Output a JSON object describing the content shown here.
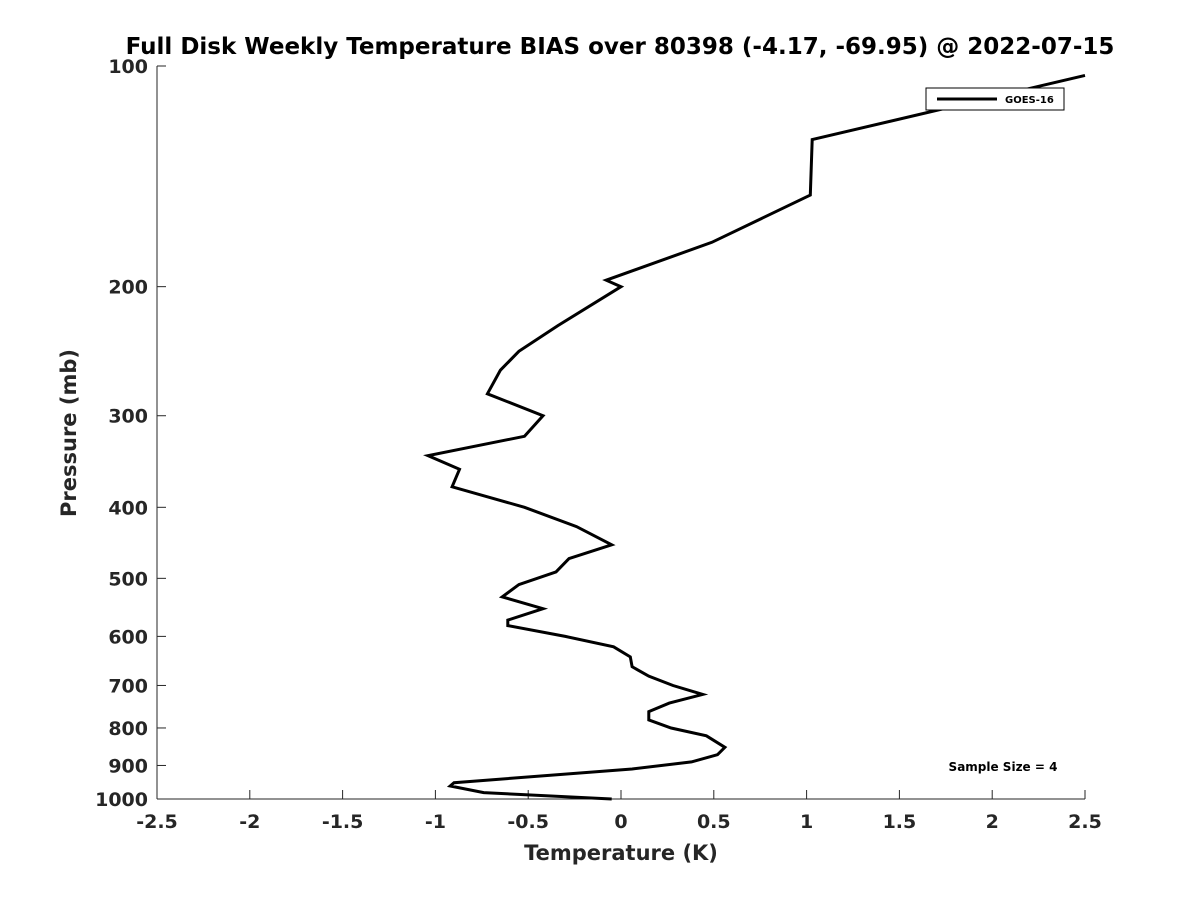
{
  "chart_data": {
    "type": "line",
    "title": "Full Disk Weekly Temperature BIAS over 80398 (-4.17, -69.95) @ 2022-07-15",
    "xlabel": "Temperature (K)",
    "ylabel": "Pressure (mb)",
    "xlim": [
      -2.5,
      2.5
    ],
    "ylim": [
      1000,
      100
    ],
    "y_scale": "log",
    "y_reversed": true,
    "grid": false,
    "legend_position": "top-right",
    "x_ticks": [
      -2.5,
      -2,
      -1.5,
      -1,
      -0.5,
      0,
      0.5,
      1,
      1.5,
      2,
      2.5
    ],
    "x_tick_labels": [
      "-2.5",
      "-2",
      "-1.5",
      "-1",
      "-0.5",
      "0",
      "0.5",
      "1",
      "1.5",
      "2",
      "2.5"
    ],
    "y_ticks": [
      100,
      200,
      300,
      400,
      500,
      600,
      700,
      800,
      900,
      1000
    ],
    "y_tick_labels": [
      "100",
      "200",
      "300",
      "400",
      "500",
      "600",
      "700",
      "800",
      "900",
      "1000"
    ],
    "series": [
      {
        "name": "GOES-16",
        "color": "#000000",
        "points": [
          {
            "x": 2.5,
            "y": 103
          },
          {
            "x": 1.03,
            "y": 126
          },
          {
            "x": 1.02,
            "y": 150
          },
          {
            "x": 0.49,
            "y": 174
          },
          {
            "x": -0.08,
            "y": 196
          },
          {
            "x": 0.0,
            "y": 200
          },
          {
            "x": -0.34,
            "y": 226
          },
          {
            "x": -0.55,
            "y": 245
          },
          {
            "x": -0.65,
            "y": 260
          },
          {
            "x": -0.72,
            "y": 280
          },
          {
            "x": -0.42,
            "y": 300
          },
          {
            "x": -0.52,
            "y": 320
          },
          {
            "x": -1.04,
            "y": 340
          },
          {
            "x": -0.87,
            "y": 355
          },
          {
            "x": -0.91,
            "y": 375
          },
          {
            "x": -0.52,
            "y": 400
          },
          {
            "x": -0.24,
            "y": 425
          },
          {
            "x": -0.05,
            "y": 450
          },
          {
            "x": -0.28,
            "y": 470
          },
          {
            "x": -0.35,
            "y": 490
          },
          {
            "x": -0.55,
            "y": 510
          },
          {
            "x": -0.64,
            "y": 530
          },
          {
            "x": -0.42,
            "y": 550
          },
          {
            "x": -0.61,
            "y": 570
          },
          {
            "x": -0.61,
            "y": 580
          },
          {
            "x": -0.3,
            "y": 600
          },
          {
            "x": -0.04,
            "y": 620
          },
          {
            "x": 0.05,
            "y": 640
          },
          {
            "x": 0.06,
            "y": 660
          },
          {
            "x": 0.15,
            "y": 680
          },
          {
            "x": 0.28,
            "y": 700
          },
          {
            "x": 0.44,
            "y": 720
          },
          {
            "x": 0.26,
            "y": 740
          },
          {
            "x": 0.15,
            "y": 760
          },
          {
            "x": 0.15,
            "y": 780
          },
          {
            "x": 0.27,
            "y": 800
          },
          {
            "x": 0.46,
            "y": 820
          },
          {
            "x": 0.56,
            "y": 850
          },
          {
            "x": 0.52,
            "y": 870
          },
          {
            "x": 0.38,
            "y": 890
          },
          {
            "x": 0.06,
            "y": 910
          },
          {
            "x": -0.9,
            "y": 950
          },
          {
            "x": -0.92,
            "y": 960
          },
          {
            "x": -0.74,
            "y": 980
          },
          {
            "x": -0.05,
            "y": 1000
          }
        ]
      }
    ],
    "annotations": [
      {
        "text": "Sample Size = 4",
        "position": "bottom-right"
      }
    ]
  }
}
